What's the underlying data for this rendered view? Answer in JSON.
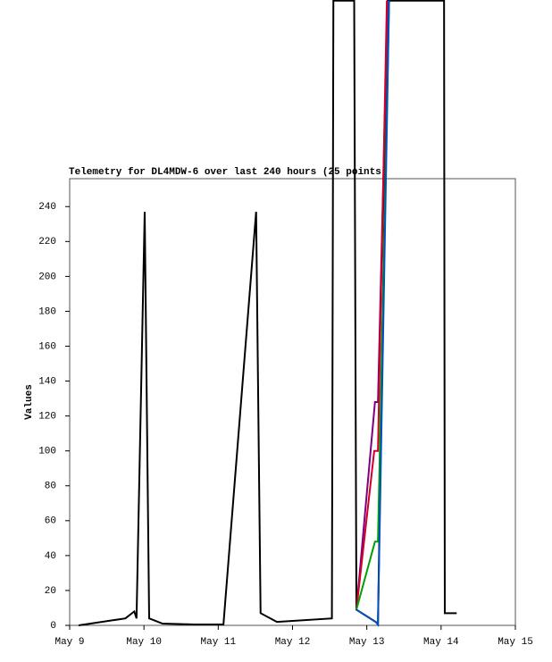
{
  "chart_data": {
    "type": "line",
    "title": "Telemetry for DL4MDW-6 over last 240 hours (25 points)",
    "y_label": "Values",
    "xlim": [
      9,
      15
    ],
    "xticks": [
      {
        "value": 9,
        "label": "May 9"
      },
      {
        "value": 10,
        "label": "May 10"
      },
      {
        "value": 11,
        "label": "May 11"
      },
      {
        "value": 12,
        "label": "May 12"
      },
      {
        "value": 13,
        "label": "May 13"
      },
      {
        "value": 14,
        "label": "May 14"
      },
      {
        "value": 15,
        "label": "May 15"
      }
    ],
    "ylim": [
      0,
      256
    ],
    "yticks": [
      0,
      20,
      40,
      60,
      80,
      100,
      120,
      140,
      160,
      180,
      200,
      220,
      240
    ],
    "series": [
      {
        "color": "#000000",
        "x": [
          9.12,
          9.75,
          9.87,
          9.9,
          10.01,
          10.07,
          10.25,
          10.68,
          11.07,
          11.51,
          11.57,
          11.79,
          12.53,
          12.55,
          12.83,
          12.86,
          13.12,
          13.15,
          13.28,
          14.04,
          14.05,
          14.21
        ],
        "values": [
          0,
          4,
          8,
          4,
          237,
          4,
          1,
          0.5,
          0.5,
          237,
          7,
          2,
          4,
          358,
          358,
          9,
          2,
          0.5,
          358,
          358,
          7,
          7
        ]
      },
      {
        "color": "#800080",
        "x": [
          12.86,
          13.11,
          13.15,
          13.28
        ],
        "values": [
          9,
          128,
          128,
          358
        ]
      },
      {
        "color": "#d0002a",
        "x": [
          12.86,
          13.1,
          13.15,
          13.27
        ],
        "values": [
          9,
          100,
          100,
          358
        ]
      },
      {
        "color": "#00a000",
        "x": [
          12.86,
          13.11,
          13.15,
          13.3
        ],
        "values": [
          9,
          48,
          48,
          358
        ]
      },
      {
        "color": "#0050c0",
        "x": [
          12.86,
          13.12,
          13.15,
          13.3
        ],
        "values": [
          9,
          2,
          0.5,
          358
        ]
      }
    ]
  }
}
